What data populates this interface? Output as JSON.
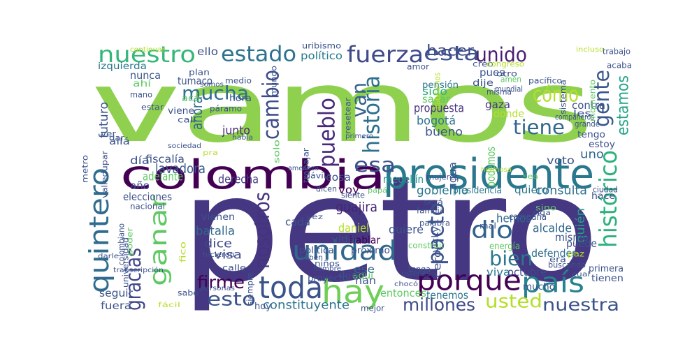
{
  "words": [
    {
      "text": "vamos",
      "color": "#8fd14f"
    },
    {
      "text": "petro",
      "color": "#453781"
    },
    {
      "text": "colombia",
      "color": "#440154"
    },
    {
      "text": "presidente",
      "color": "#2a788e"
    },
    {
      "text": "porque",
      "color": "#440154"
    },
    {
      "text": "toda",
      "color": "#3b528b"
    },
    {
      "text": "hay",
      "color": "#6ece58"
    },
    {
      "text": "país",
      "color": "#26828e"
    },
    {
      "text": "unidad",
      "color": "#31688e"
    },
    {
      "text": "quintero",
      "color": "#2f6c8e"
    },
    {
      "text": "ganar",
      "color": "#5ec962"
    },
    {
      "text": "gracias",
      "color": "#404688"
    },
    {
      "text": "nuestro",
      "color": "#35b779"
    },
    {
      "text": "estado",
      "color": "#2c728e"
    },
    {
      "text": "fuerza",
      "color": "#3f4a8a"
    },
    {
      "text": "esta",
      "color": "#3b528b"
    },
    {
      "text": "unido",
      "color": "#481d6f"
    },
    {
      "text": "mucha",
      "color": "#2e6f8e"
    },
    {
      "text": "cambio",
      "color": "#3e4c8a"
    },
    {
      "text": "historia",
      "color": "#2d708e"
    },
    {
      "text": "gente",
      "color": "#39568c"
    },
    {
      "text": "cómo",
      "color": "#b5de2b"
    },
    {
      "text": "tiene",
      "color": "#31688e"
    },
    {
      "text": "esa",
      "color": "#3b528b"
    },
    {
      "text": "pueblo",
      "color": "#482878"
    },
    {
      "text": "van",
      "color": "#34618d"
    },
    {
      "text": "pacto",
      "color": "#3b528b"
    },
    {
      "text": "dio",
      "color": "#33638d"
    },
    {
      "text": "bien",
      "color": "#2a788e"
    },
    {
      "text": "histórico",
      "color": "#2db27d"
    },
    {
      "text": "nosotros",
      "color": "#46327e"
    },
    {
      "text": "esto",
      "color": "#3b528b"
    },
    {
      "text": "firme",
      "color": "#440154"
    },
    {
      "text": "millones",
      "color": "#3e4989"
    },
    {
      "text": "usted",
      "color": "#b5de2b"
    },
    {
      "text": "nuestra",
      "color": "#3b528b"
    },
    {
      "text": "hacer",
      "color": "#3e4a89"
    },
    {
      "text": "estamos",
      "color": "#21a585"
    },
    {
      "text": "constituyente",
      "color": "#2c728e"
    },
    {
      "text": "guajira",
      "color": "#482576"
    },
    {
      "text": "gobierno",
      "color": "#2a788e"
    },
    {
      "text": "consulta",
      "color": "#2e6e8e"
    },
    {
      "text": "bogotá",
      "color": "#2c738e"
    },
    {
      "text": "bueno",
      "color": "#3a548c"
    },
    {
      "text": "propuesta",
      "color": "#46337e"
    },
    {
      "text": "lavadora",
      "color": "#375a8c"
    },
    {
      "text": "daniel",
      "color": "#b5de2b"
    },
    {
      "text": "quiere",
      "color": "#3b528b"
    },
    {
      "text": "batalla",
      "color": "#31688e"
    },
    {
      "text": "dice",
      "color": "#3e4a89"
    },
    {
      "text": "visa",
      "color": "#3e4c8a"
    },
    {
      "text": "junto",
      "color": "#482878"
    },
    {
      "text": "derecha",
      "color": "#433e85"
    },
    {
      "text": "adelante",
      "color": "#5ec962"
    },
    {
      "text": "político",
      "color": "#287c8e"
    },
    {
      "text": "ahora",
      "color": "#31688e"
    },
    {
      "text": "tenemos",
      "color": "#2a788e"
    },
    {
      "text": "alcalde",
      "color": "#31688e"
    },
    {
      "text": "hemos",
      "color": "#31688e"
    },
    {
      "text": "quién",
      "color": "#20a386"
    },
    {
      "text": "entonces",
      "color": "#5ec962"
    },
    {
      "text": "uno",
      "color": "#31688e"
    },
    {
      "text": "donde",
      "color": "#b5de2b"
    },
    {
      "text": "voto",
      "color": "#3b528b"
    },
    {
      "text": "quiero",
      "color": "#2a788e"
    },
    {
      "text": "hablar",
      "color": "#440154"
    },
    {
      "text": "defender",
      "color": "#2e6e8e"
    },
    {
      "text": "mismo",
      "color": "#3b528b"
    },
    {
      "text": "puede",
      "color": "#3b528b"
    },
    {
      "text": "contra",
      "color": "#3b528b"
    },
    {
      "text": "gaza",
      "color": "#46337e"
    },
    {
      "text": "pues",
      "color": "#3b528b"
    },
    {
      "text": "sido",
      "color": "#2db27d"
    },
    {
      "text": "sacar",
      "color": "#5ec962"
    },
    {
      "text": "pensión",
      "color": "#2a788e"
    },
    {
      "text": "medellín",
      "color": "#21918c"
    },
    {
      "text": "voy",
      "color": "#440154"
    },
    {
      "text": "han",
      "color": "#3b528b"
    },
    {
      "text": "cada",
      "color": "#3b528b"
    },
    {
      "text": "ese",
      "color": "#31688e"
    },
    {
      "text": "viva",
      "color": "#2a788e"
    },
    {
      "text": "octubre",
      "color": "#3e4a89"
    },
    {
      "text": "campaña",
      "color": "#3b528b"
    },
    {
      "text": "fiscalía",
      "color": "#3b528b"
    },
    {
      "text": "día",
      "color": "#3b528b"
    },
    {
      "text": "año",
      "color": "#3b528b"
    },
    {
      "text": "elecciones",
      "color": "#3b528b"
    },
    {
      "text": "futuro",
      "color": "#3b528b"
    },
    {
      "text": "seguir",
      "color": "#3b528b"
    },
    {
      "text": "fuera",
      "color": "#3b528b"
    },
    {
      "text": "nunca",
      "color": "#3b528b"
    },
    {
      "text": "tumaco",
      "color": "#3b528b"
    },
    {
      "text": "ello",
      "color": "#3b528b"
    },
    {
      "text": "izquierda",
      "color": "#2a788e"
    },
    {
      "text": "cosa",
      "color": "#3b528b"
    },
    {
      "text": "hora",
      "color": "#3b528b"
    },
    {
      "text": "viene",
      "color": "#3b528b"
    },
    {
      "text": "allá",
      "color": "#3b528b"
    },
    {
      "text": "mucho",
      "color": "#3b528b"
    },
    {
      "text": "hoy",
      "color": "#3b528b"
    },
    {
      "text": "política",
      "color": "#3b528b"
    },
    {
      "text": "proyecto",
      "color": "#3b528b"
    },
    {
      "text": "vienen",
      "color": "#3b528b"
    },
    {
      "text": "cero",
      "color": "#3b528b"
    },
    {
      "text": "vida",
      "color": "#3b528b"
    },
    {
      "text": "próximo",
      "color": "#3b528b"
    },
    {
      "text": "aquí",
      "color": "#5ec962"
    },
    {
      "text": "dije",
      "color": "#3b528b"
    },
    {
      "text": "agua",
      "color": "#3b528b"
    },
    {
      "text": "podemos",
      "color": "#5ec962"
    },
    {
      "text": "energía",
      "color": "#5ec962"
    },
    {
      "text": "primera",
      "color": "#3b528b"
    },
    {
      "text": "tienen",
      "color": "#3b528b"
    },
    {
      "text": "presidencia",
      "color": "#2a788e"
    },
    {
      "text": "uribismo",
      "color": "#3b528b"
    },
    {
      "text": "les",
      "color": "#3b528b"
    },
    {
      "text": "tengo",
      "color": "#3b528b"
    },
    {
      "text": "estoy",
      "color": "#3b528b"
    },
    {
      "text": "hace",
      "color": "#3b528b"
    },
    {
      "text": "ahí",
      "color": "#5ec962"
    },
    {
      "text": "acá",
      "color": "#5ec962"
    },
    {
      "text": "creo",
      "color": "#3b528b"
    },
    {
      "text": "congreso",
      "color": "#b5de2b"
    },
    {
      "text": "otro",
      "color": "#3b528b"
    },
    {
      "text": "pacífico",
      "color": "#3b528b"
    },
    {
      "text": "plan",
      "color": "#3b528b"
    },
    {
      "text": "medio",
      "color": "#3b528b"
    },
    {
      "text": "mano",
      "color": "#3b528b"
    },
    {
      "text": "estar",
      "color": "#3b528b"
    },
    {
      "text": "cali",
      "color": "#3b528b"
    },
    {
      "text": "páramo",
      "color": "#3b528b"
    },
    {
      "text": "ver",
      "color": "#3b528b"
    },
    {
      "text": "dar",
      "color": "#3b528b"
    },
    {
      "text": "mujeres",
      "color": "#3b528b"
    },
    {
      "text": "vicky",
      "color": "#3b528b"
    },
    {
      "text": "nacional",
      "color": "#3b528b"
    },
    {
      "text": "colombiano",
      "color": "#3b528b"
    },
    {
      "text": "poder",
      "color": "#5ec962"
    },
    {
      "text": "dávila",
      "color": "#3b528b"
    },
    {
      "text": "calle",
      "color": "#3b528b"
    },
    {
      "text": "niños",
      "color": "#3b528b"
    },
    {
      "text": "familia",
      "color": "#3b528b"
    },
    {
      "text": "palabra",
      "color": "#3b528b"
    },
    {
      "text": "construir",
      "color": "#5ec962"
    },
    {
      "text": "mal",
      "color": "#3b528b"
    },
    {
      "text": "era",
      "color": "#3b528b"
    },
    {
      "text": "paz",
      "color": "#b5de2b"
    },
    {
      "text": "sino",
      "color": "#5ec962"
    },
    {
      "text": "buscando",
      "color": "#3b528b"
    },
    {
      "text": "siempre",
      "color": "#3b528b"
    },
    {
      "text": "mejor",
      "color": "#3b528b"
    },
    {
      "text": "sabe",
      "color": "#3b528b"
    },
    {
      "text": "dijo",
      "color": "#3b528b"
    },
    {
      "text": "ustedes",
      "color": "#3b528b"
    },
    {
      "text": "trabajo",
      "color": "#3b528b"
    },
    {
      "text": "acaba",
      "color": "#3b528b"
    },
    {
      "text": "mundial",
      "color": "#3b528b"
    },
    {
      "text": "misma",
      "color": "#3b528b"
    },
    {
      "text": "amor",
      "color": "#3b528b"
    },
    {
      "text": "tenga",
      "color": "#3b528b"
    },
    {
      "text": "dicen",
      "color": "#3b528b"
    },
    {
      "text": "siente",
      "color": "#3b528b"
    },
    {
      "text": "será",
      "color": "#3b528b"
    },
    {
      "text": "ciudad",
      "color": "#3b528b"
    },
    {
      "text": "grande",
      "color": "#3b528b"
    },
    {
      "text": "compañeros",
      "color": "#3b528b"
    },
    {
      "text": "sistema",
      "color": "#3b528b"
    },
    {
      "text": "momento",
      "color": "#5ec962"
    },
    {
      "text": "continuar",
      "color": "#b5de2b"
    },
    {
      "text": "somos",
      "color": "#3b528b"
    },
    {
      "text": "mundo",
      "color": "#3b528b"
    },
    {
      "text": "amén",
      "color": "#5ec962"
    },
    {
      "text": "solo",
      "color": "#5ec962"
    },
    {
      "text": "había",
      "color": "#3b528b"
    },
    {
      "text": "sociedad",
      "color": "#3b528b"
    },
    {
      "text": "pra",
      "color": "#b5de2b"
    },
    {
      "text": "metro",
      "color": "#3b528b"
    },
    {
      "text": "valledupar",
      "color": "#3b528b"
    },
    {
      "text": "universidad",
      "color": "#3b528b"
    },
    {
      "text": "transcripción",
      "color": "#3b528b"
    },
    {
      "text": "darle",
      "color": "#3b528b"
    },
    {
      "text": "hicieron",
      "color": "#3b528b"
    },
    {
      "text": "saben",
      "color": "#3b528b"
    },
    {
      "text": "hombre",
      "color": "#3b528b"
    },
    {
      "text": "personas",
      "color": "#3b528b"
    },
    {
      "text": "chocó",
      "color": "#3b528b"
    },
    {
      "text": "cual",
      "color": "#3b528b"
    },
    {
      "text": "papá",
      "color": "#5ec962"
    },
    {
      "text": "resetear",
      "color": "#3b528b"
    },
    {
      "text": "primero",
      "color": "#3b528b"
    },
    {
      "text": "trabajar",
      "color": "#3b528b"
    },
    {
      "text": "amenaza",
      "color": "#3b528b"
    },
    {
      "text": "vez",
      "color": "#3b528b"
    },
    {
      "text": "fico",
      "color": "#b5de2b"
    },
    {
      "text": "hermosa",
      "color": "#b5de2b"
    },
    {
      "text": "incluso",
      "color": "#b5de2b"
    },
    {
      "text": "fácil",
      "color": "#b5de2b"
    },
    {
      "text": "sea",
      "color": "#5ec962"
    },
    {
      "text": "siga",
      "color": "#3b528b"
    },
    {
      "text": "habitamos",
      "color": "#b5de2b"
    }
  ]
}
